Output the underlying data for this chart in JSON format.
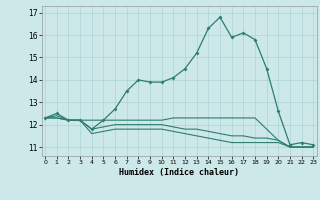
{
  "xlabel": "Humidex (Indice chaleur)",
  "ylabel": "",
  "x": [
    0,
    1,
    2,
    3,
    4,
    5,
    6,
    7,
    8,
    9,
    10,
    11,
    12,
    13,
    14,
    15,
    16,
    17,
    18,
    19,
    20,
    21,
    22,
    23
  ],
  "line1": [
    12.3,
    12.5,
    12.2,
    12.2,
    11.8,
    12.2,
    12.7,
    13.5,
    14.0,
    13.9,
    13.9,
    14.1,
    14.5,
    15.2,
    16.3,
    16.8,
    15.9,
    16.1,
    15.8,
    14.5,
    12.6,
    11.1,
    11.2,
    11.1
  ],
  "line2": [
    12.3,
    12.4,
    12.2,
    12.2,
    12.2,
    12.2,
    12.2,
    12.2,
    12.2,
    12.2,
    12.2,
    12.3,
    12.3,
    12.3,
    12.3,
    12.3,
    12.3,
    12.3,
    12.3,
    11.8,
    11.3,
    11.0,
    11.0,
    11.0
  ],
  "line3": [
    12.3,
    12.3,
    12.2,
    12.2,
    11.8,
    11.9,
    12.0,
    12.0,
    12.0,
    12.0,
    12.0,
    11.9,
    11.8,
    11.8,
    11.7,
    11.6,
    11.5,
    11.5,
    11.4,
    11.4,
    11.3,
    11.0,
    11.0,
    11.0
  ],
  "line4": [
    12.3,
    12.3,
    12.2,
    12.2,
    11.6,
    11.7,
    11.8,
    11.8,
    11.8,
    11.8,
    11.8,
    11.7,
    11.6,
    11.5,
    11.4,
    11.3,
    11.2,
    11.2,
    11.2,
    11.2,
    11.2,
    11.0,
    11.0,
    11.0
  ],
  "line_color": "#2e7d6e",
  "bg_color": "#cce8e8",
  "grid_color": "#add4d4",
  "ylim": [
    10.6,
    17.3
  ],
  "yticks": [
    11,
    12,
    13,
    14,
    15,
    16,
    17
  ],
  "xticks": [
    0,
    1,
    2,
    3,
    4,
    5,
    6,
    7,
    8,
    9,
    10,
    11,
    12,
    13,
    14,
    15,
    16,
    17,
    18,
    19,
    20,
    21,
    22,
    23
  ]
}
